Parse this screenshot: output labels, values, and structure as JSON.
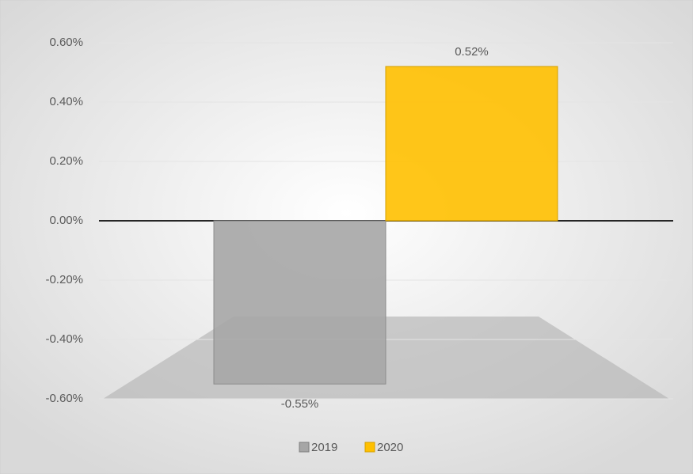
{
  "chart_data": {
    "type": "bar",
    "categories": [
      null
    ],
    "series": [
      {
        "name": "2019",
        "color": "#a6a6a6",
        "values": [
          -0.55
        ],
        "value_labels": [
          "-0.55%"
        ]
      },
      {
        "name": "2020",
        "color": "#ffc000",
        "values": [
          0.52
        ],
        "value_labels": [
          "0.52%"
        ]
      }
    ],
    "ylim": [
      -0.6,
      0.6
    ],
    "yticks": [
      {
        "value": -0.6,
        "label": "-0.60%"
      },
      {
        "value": -0.4,
        "label": "-0.40%"
      },
      {
        "value": -0.2,
        "label": "-0.20%"
      },
      {
        "value": 0,
        "label": "0.00%"
      },
      {
        "value": 0.2,
        "label": "0.20%"
      },
      {
        "value": 0.4,
        "label": "0.40%"
      },
      {
        "value": 0.6,
        "label": "0.60%"
      }
    ],
    "grid": true,
    "legend": "bottom"
  }
}
